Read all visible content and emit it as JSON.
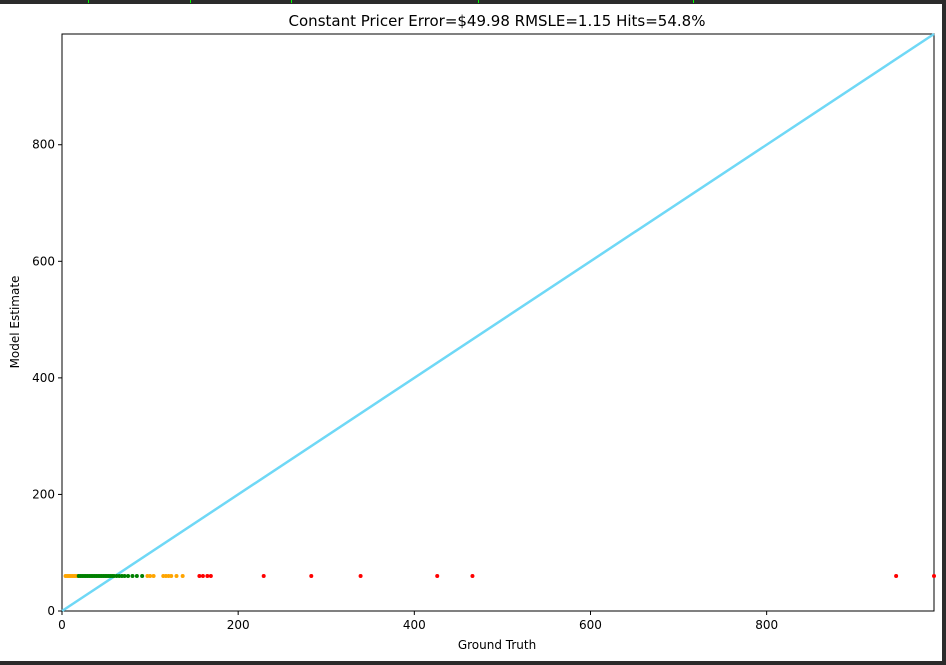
{
  "chart_data": {
    "type": "scatter",
    "title": "Constant Pricer Error=$49.98 RMSLE=1.15 Hits=54.8%",
    "xlabel": "Ground Truth",
    "ylabel": "Model Estimate",
    "xlim": [
      0,
      990
    ],
    "ylim": [
      0,
      990
    ],
    "xticks": [
      0,
      200,
      400,
      600,
      800
    ],
    "yticks": [
      0,
      200,
      400,
      600,
      800
    ],
    "reference_line": {
      "from": [
        0,
        0
      ],
      "to": [
        990,
        990
      ],
      "color": "#6fd8f6"
    },
    "colors": {
      "green": "#008000",
      "orange": "#ffa500",
      "red": "#ff0000"
    },
    "series": [
      {
        "color": "orange",
        "points": [
          [
            4,
            60
          ],
          [
            6,
            60
          ],
          [
            8,
            60
          ],
          [
            10,
            60
          ],
          [
            12,
            60
          ],
          [
            14,
            60
          ],
          [
            16,
            60
          ],
          [
            18,
            60
          ],
          [
            97,
            60
          ],
          [
            100,
            60
          ],
          [
            104,
            60
          ],
          [
            115,
            60
          ],
          [
            118,
            60
          ],
          [
            121,
            60
          ],
          [
            124,
            60
          ],
          [
            130,
            60
          ],
          [
            137,
            60
          ]
        ]
      },
      {
        "color": "green",
        "points": [
          [
            19,
            60
          ],
          [
            21,
            60
          ],
          [
            23,
            60
          ],
          [
            25,
            60
          ],
          [
            27,
            60
          ],
          [
            29,
            60
          ],
          [
            31,
            60
          ],
          [
            33,
            60
          ],
          [
            35,
            60
          ],
          [
            37,
            60
          ],
          [
            39,
            60
          ],
          [
            41,
            60
          ],
          [
            43,
            60
          ],
          [
            45,
            60
          ],
          [
            47,
            60
          ],
          [
            49,
            60
          ],
          [
            51,
            60
          ],
          [
            53,
            60
          ],
          [
            55,
            60
          ],
          [
            57,
            60
          ],
          [
            59,
            60
          ],
          [
            62,
            60
          ],
          [
            65,
            60
          ],
          [
            68,
            60
          ],
          [
            71,
            60
          ],
          [
            75,
            60
          ],
          [
            80,
            60
          ],
          [
            85,
            60
          ],
          [
            91,
            60
          ]
        ]
      },
      {
        "color": "red",
        "points": [
          [
            156,
            60
          ],
          [
            160,
            60
          ],
          [
            165,
            60
          ],
          [
            169,
            60
          ],
          [
            229,
            60
          ],
          [
            283,
            60
          ],
          [
            339,
            60
          ],
          [
            426,
            60
          ],
          [
            466,
            60
          ],
          [
            947,
            60
          ],
          [
            990,
            60
          ]
        ]
      }
    ]
  }
}
